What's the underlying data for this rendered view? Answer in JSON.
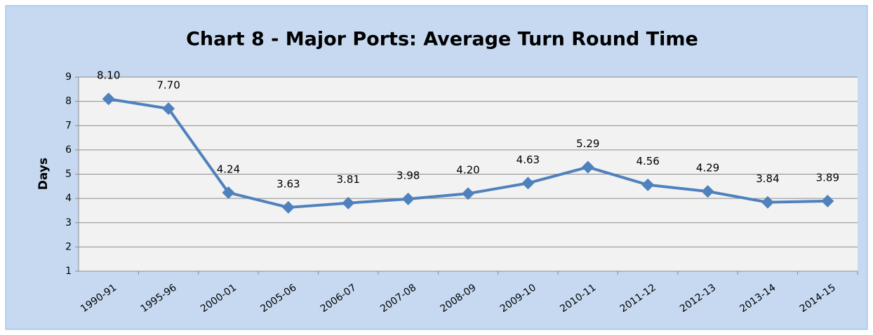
{
  "chart_data": {
    "type": "line",
    "title": "Chart 8 - Major Ports: Average Turn Round Time",
    "y_label": "Days",
    "categories": [
      "1990-91",
      "1995-96",
      "2000-01",
      "2005-06",
      "2006-07",
      "2007-08",
      "2008-09",
      "2009-10",
      "2010-11",
      "2011-12",
      "2012-13",
      "2013-14",
      "2014-15"
    ],
    "series": [
      {
        "name": "Average Turn Round Time",
        "color": "#4f81bd",
        "values": [
          8.1,
          7.7,
          4.24,
          3.63,
          3.81,
          3.98,
          4.2,
          4.63,
          5.29,
          4.56,
          4.29,
          3.84,
          3.89
        ],
        "value_labels": [
          "8.10",
          "7.70",
          "4.24",
          "3.63",
          "3.81",
          "3.98",
          "4.20",
          "4.63",
          "5.29",
          "4.56",
          "4.29",
          "3.84",
          "3.89"
        ]
      }
    ],
    "ylim": [
      1,
      9
    ],
    "yticks": [
      1,
      2,
      3,
      4,
      5,
      6,
      7,
      8,
      9
    ],
    "grid": true
  }
}
